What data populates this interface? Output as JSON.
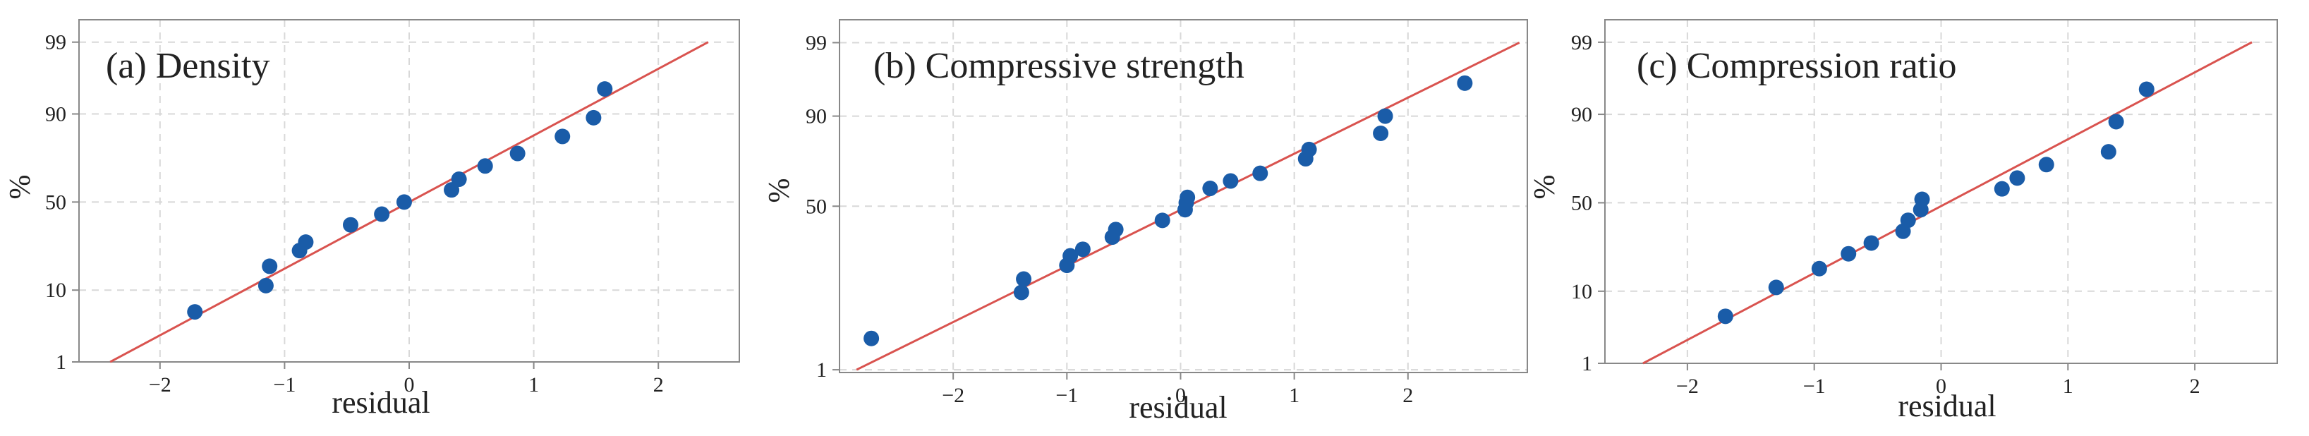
{
  "chart_data": [
    {
      "type": "scatter",
      "title": "(a) Density",
      "xlabel": "residual",
      "ylabel": "%",
      "scale": "normal-probability",
      "xlim": [
        -2.65,
        2.65
      ],
      "xticks": [
        -2,
        -1,
        0,
        1,
        2
      ],
      "yticks": [
        1,
        10,
        50,
        90,
        99
      ],
      "grid": true,
      "fit_line": {
        "x": [
          -2.4,
          2.4
        ],
        "y": [
          1,
          99
        ]
      },
      "points": [
        {
          "x": -1.72,
          "y": 5.5
        },
        {
          "x": -1.15,
          "y": 11.2
        },
        {
          "x": -1.12,
          "y": 17.5
        },
        {
          "x": -0.88,
          "y": 24
        },
        {
          "x": -0.83,
          "y": 28
        },
        {
          "x": -0.47,
          "y": 37
        },
        {
          "x": -0.22,
          "y": 43
        },
        {
          "x": -0.04,
          "y": 50
        },
        {
          "x": 0.34,
          "y": 57
        },
        {
          "x": 0.4,
          "y": 63
        },
        {
          "x": 0.61,
          "y": 70
        },
        {
          "x": 0.87,
          "y": 76
        },
        {
          "x": 1.23,
          "y": 83
        },
        {
          "x": 1.48,
          "y": 89
        },
        {
          "x": 1.57,
          "y": 95
        }
      ]
    },
    {
      "type": "scatter",
      "title": "(b) Compressive strength",
      "xlabel": "residual",
      "ylabel": "%",
      "scale": "normal-probability",
      "xlim": [
        -3.0,
        3.05
      ],
      "xticks": [
        -2,
        -1,
        0,
        1,
        2
      ],
      "yticks": [
        1,
        50,
        90,
        99
      ],
      "grid": true,
      "fit_line": {
        "x": [
          -2.85,
          2.98
        ],
        "y": [
          1,
          99
        ]
      },
      "points": [
        {
          "x": -2.72,
          "y": 3
        },
        {
          "x": -1.4,
          "y": 11
        },
        {
          "x": -1.38,
          "y": 15
        },
        {
          "x": -1.0,
          "y": 20
        },
        {
          "x": -0.97,
          "y": 24
        },
        {
          "x": -0.86,
          "y": 27
        },
        {
          "x": -0.6,
          "y": 33
        },
        {
          "x": -0.57,
          "y": 37
        },
        {
          "x": -0.16,
          "y": 42
        },
        {
          "x": 0.04,
          "y": 48
        },
        {
          "x": 0.05,
          "y": 52
        },
        {
          "x": 0.06,
          "y": 55
        },
        {
          "x": 0.26,
          "y": 60
        },
        {
          "x": 0.44,
          "y": 64
        },
        {
          "x": 0.7,
          "y": 68
        },
        {
          "x": 1.1,
          "y": 75
        },
        {
          "x": 1.13,
          "y": 79
        },
        {
          "x": 1.76,
          "y": 85
        },
        {
          "x": 1.8,
          "y": 90
        },
        {
          "x": 2.5,
          "y": 96
        }
      ]
    },
    {
      "type": "scatter",
      "title": "(c) Compression ratio",
      "xlabel": "residual",
      "ylabel": "%",
      "scale": "normal-probability",
      "xlim": [
        -2.65,
        2.65
      ],
      "xticks": [
        -2,
        -1,
        0,
        1,
        2
      ],
      "yticks": [
        1,
        10,
        50,
        90,
        99
      ],
      "grid": true,
      "fit_line": {
        "x": [
          -2.35,
          2.45
        ],
        "y": [
          1,
          99
        ]
      },
      "points": [
        {
          "x": -1.7,
          "y": 5
        },
        {
          "x": -1.3,
          "y": 11
        },
        {
          "x": -0.96,
          "y": 17
        },
        {
          "x": -0.73,
          "y": 23
        },
        {
          "x": -0.55,
          "y": 28
        },
        {
          "x": -0.3,
          "y": 34
        },
        {
          "x": -0.26,
          "y": 40
        },
        {
          "x": -0.16,
          "y": 46
        },
        {
          "x": -0.15,
          "y": 52
        },
        {
          "x": 0.48,
          "y": 58
        },
        {
          "x": 0.6,
          "y": 64
        },
        {
          "x": 0.83,
          "y": 71
        },
        {
          "x": 1.32,
          "y": 77
        },
        {
          "x": 1.38,
          "y": 88
        },
        {
          "x": 1.62,
          "y": 95
        }
      ]
    }
  ],
  "colors": {
    "point": "#1a5ca8",
    "fit_line": "#d9534f",
    "grid": "#d8d8d8",
    "axis": "#888888",
    "background": "#ffffff"
  }
}
